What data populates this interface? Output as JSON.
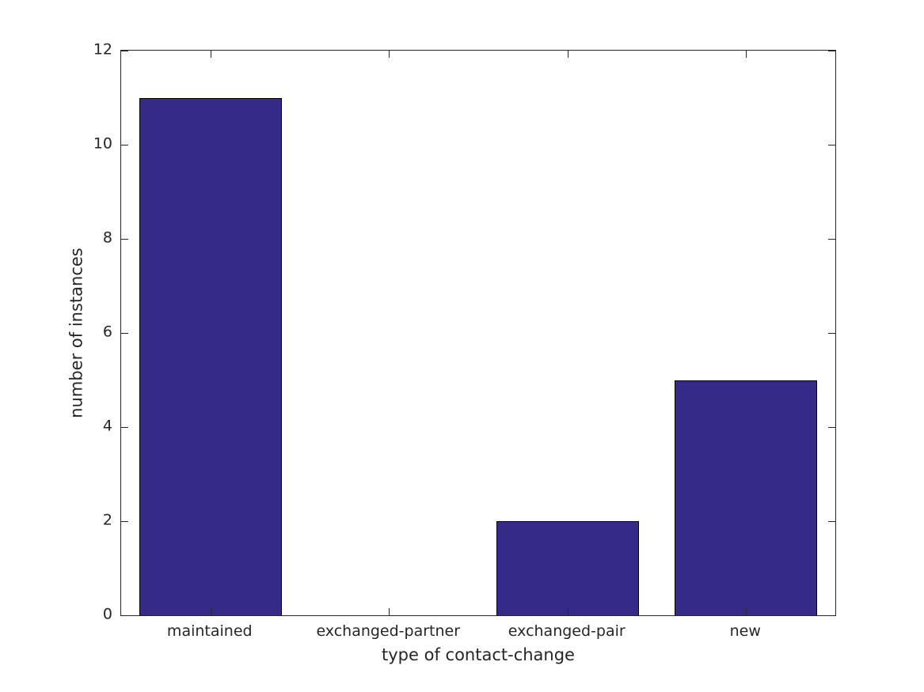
{
  "figure": {
    "background": "#ffffff"
  },
  "chart_data": {
    "type": "bar",
    "title": "",
    "categories": [
      "maintained",
      "exchanged-partner",
      "exchanged-pair",
      "new"
    ],
    "values": [
      11,
      0,
      2,
      5
    ],
    "xlabel": "type of contact-change",
    "ylabel": "number of instances",
    "ylim": [
      0,
      12
    ],
    "yticks": [
      0,
      2,
      4,
      6,
      8,
      10,
      12
    ],
    "bar_color": "#352A87",
    "bar_edge_color": "#000000",
    "axis_color": "#262626",
    "text_color": "#262626",
    "grid": false,
    "legend": null,
    "bar_width_fraction": 0.8,
    "box": true,
    "tick_direction": "in"
  }
}
